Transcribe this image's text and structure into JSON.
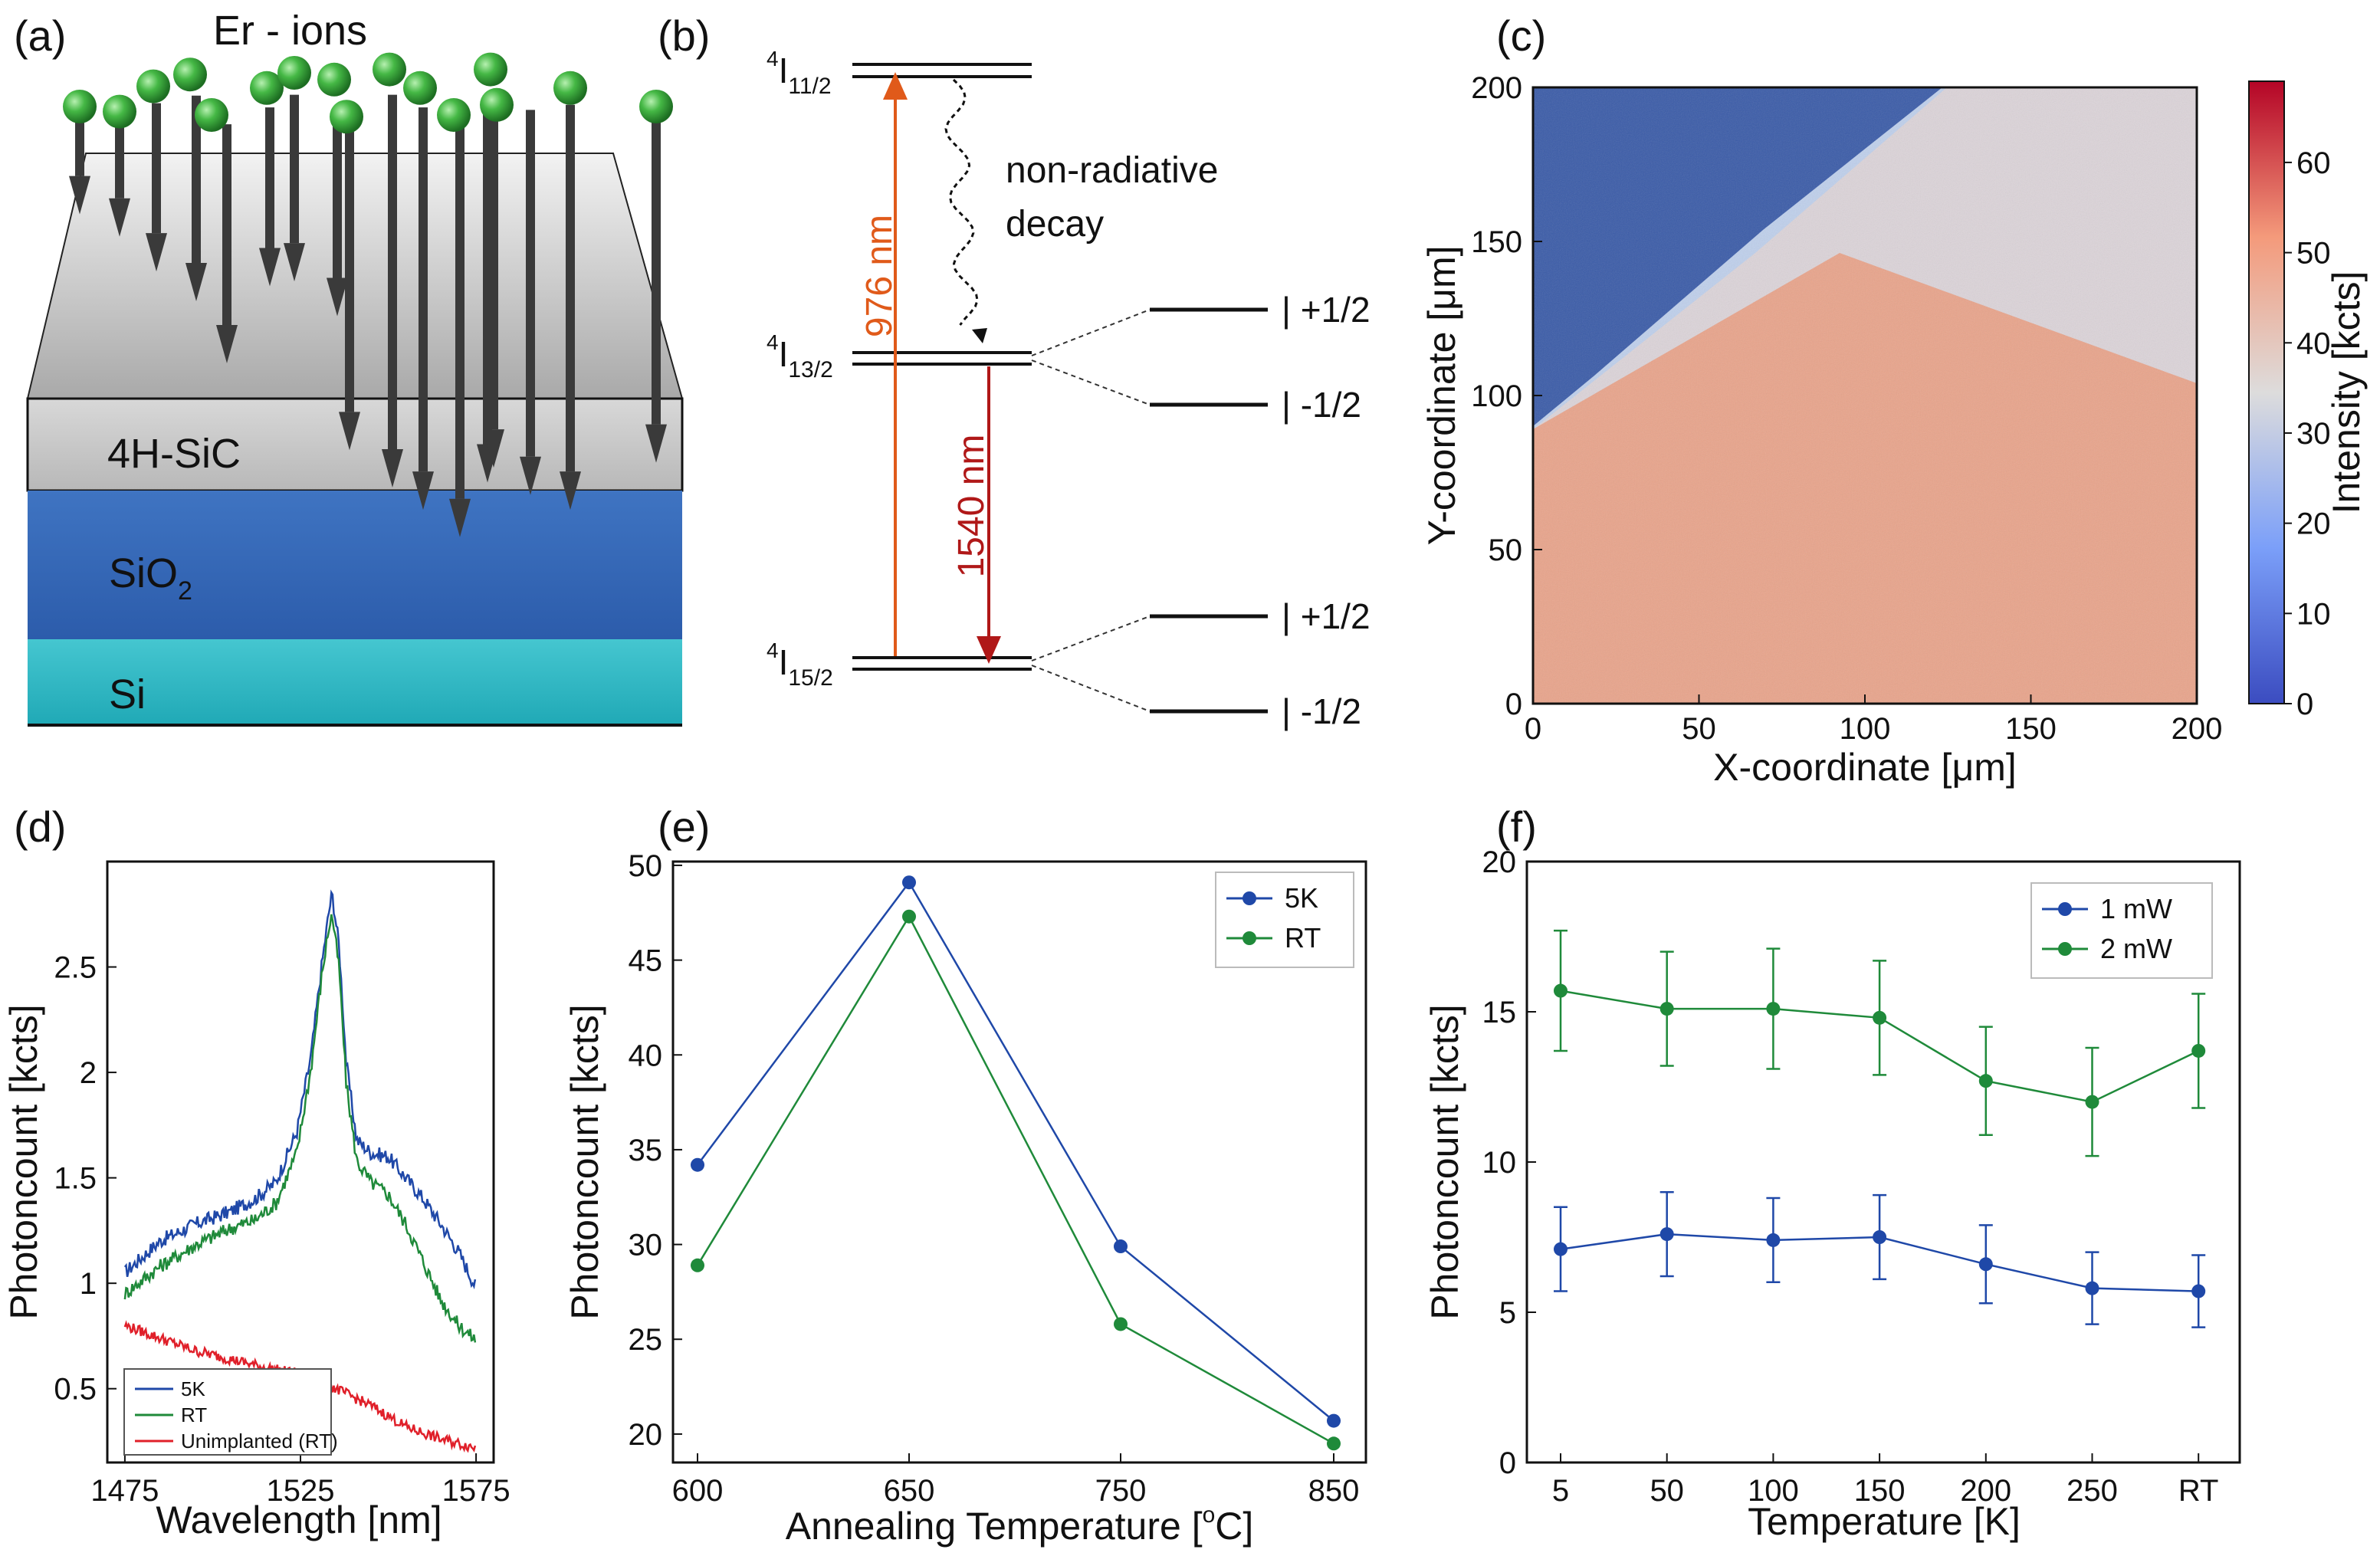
{
  "colors": {
    "erbium": "#3fae3f",
    "arrow": "#3a3a3a",
    "sic": "#c9c9c9",
    "sio2": "#3568b8",
    "si": "#2ab3c0",
    "orange": "#e05a1a",
    "darkred": "#b01818",
    "blue": "#1f48a8",
    "green": "#1f8a3a",
    "red": "#e0202a"
  },
  "panel_a": {
    "label": "(a)",
    "title": "Er - ions",
    "layers": [
      "4H-SiC",
      "SiO",
      "Si"
    ],
    "sio2_subscript": "2"
  },
  "panel_b": {
    "label": "(b)",
    "levels": [
      {
        "sup": "4",
        "name": "I",
        "sub": "11/2"
      },
      {
        "sup": "4",
        "name": "I",
        "sub": "13/2"
      },
      {
        "sup": "4",
        "name": "I",
        "sub": "15/2"
      }
    ],
    "pump_label": "976 nm",
    "emission_label": "1540 nm",
    "decay_label_1": "non-radiative",
    "decay_label_2": "decay",
    "sublevels": [
      "| +1/2",
      "| -1/2",
      "| +1/2",
      "| -1/2"
    ]
  },
  "panel_c": {
    "label": "(c)",
    "xlabel": "X-coordinate [μm]",
    "ylabel": "Y-coordinate [μm]",
    "cbar_label": "Intensity [kcts]",
    "xticks": [
      "0",
      "50",
      "100",
      "150",
      "200"
    ],
    "yticks": [
      "0",
      "50",
      "100",
      "150",
      "200"
    ],
    "cticks": [
      "0",
      "10",
      "20",
      "30",
      "40",
      "50",
      "60"
    ]
  },
  "chart_data": [
    {
      "panel": "d",
      "type": "line",
      "label": "(d)",
      "xlabel": "Wavelength [nm]",
      "ylabel": "Photoncount [kcts]",
      "xlim": [
        1470,
        1580
      ],
      "ylim": [
        0.15,
        3.0
      ],
      "xticks": [
        "1475",
        "1525",
        "1575"
      ],
      "yticks": [
        "0.5",
        "1",
        "1.5",
        "2",
        "2.5"
      ],
      "legend_position": "bottom-left",
      "series": [
        {
          "name": "5K",
          "x": [
            1475,
            1485,
            1495,
            1505,
            1512,
            1518,
            1524,
            1528,
            1531,
            1533,
            1534,
            1536,
            1538,
            1541,
            1545,
            1550,
            1555,
            1560,
            1565,
            1570,
            1575
          ],
          "y": [
            1.05,
            1.2,
            1.28,
            1.34,
            1.4,
            1.48,
            1.72,
            2.08,
            2.5,
            2.75,
            2.85,
            2.6,
            2.05,
            1.68,
            1.62,
            1.6,
            1.5,
            1.4,
            1.28,
            1.15,
            0.98
          ]
        },
        {
          "name": "RT",
          "x": [
            1475,
            1485,
            1495,
            1505,
            1512,
            1518,
            1524,
            1528,
            1531,
            1533,
            1534,
            1536,
            1538,
            1541,
            1545,
            1550,
            1555,
            1560,
            1565,
            1570,
            1575
          ],
          "y": [
            0.95,
            1.08,
            1.18,
            1.26,
            1.3,
            1.38,
            1.62,
            2.02,
            2.45,
            2.68,
            2.75,
            2.5,
            1.95,
            1.58,
            1.48,
            1.42,
            1.28,
            1.1,
            0.92,
            0.8,
            0.73
          ]
        },
        {
          "name": "Unimplanted (RT)",
          "x": [
            1475,
            1485,
            1495,
            1505,
            1515,
            1525,
            1535,
            1545,
            1555,
            1565,
            1575
          ],
          "y": [
            0.8,
            0.74,
            0.68,
            0.64,
            0.6,
            0.57,
            0.5,
            0.42,
            0.32,
            0.26,
            0.22
          ]
        }
      ]
    },
    {
      "panel": "e",
      "type": "line",
      "label": "(e)",
      "xlabel": "Annealing Temperature [",
      "xlabel_unit": "o",
      "xlabel_end": "C]",
      "ylabel": "Photoncount [kcts]",
      "categories": [
        "600",
        "650",
        "750",
        "850"
      ],
      "ylim": [
        18.5,
        50.2
      ],
      "yticks": [
        "20",
        "25",
        "30",
        "35",
        "40",
        "45",
        "50"
      ],
      "legend_position": "top-right",
      "series": [
        {
          "name": "5K",
          "values": [
            34.2,
            49.1,
            29.9,
            20.7
          ]
        },
        {
          "name": "RT",
          "values": [
            28.9,
            47.3,
            25.8,
            19.5
          ]
        }
      ]
    },
    {
      "panel": "f",
      "type": "line",
      "label": "(f)",
      "xlabel": "Temperature [K]",
      "ylabel": "Photoncount [kcts]",
      "categories": [
        "5",
        "50",
        "100",
        "150",
        "200",
        "250",
        "RT"
      ],
      "ylim": [
        0,
        20
      ],
      "yticks": [
        "0",
        "5",
        "10",
        "15",
        "20"
      ],
      "legend_position": "top-right",
      "series": [
        {
          "name": "1 mW",
          "values": [
            7.1,
            7.6,
            7.4,
            7.5,
            6.6,
            5.8,
            5.7
          ],
          "errors": [
            1.4,
            1.4,
            1.4,
            1.4,
            1.3,
            1.2,
            1.2
          ]
        },
        {
          "name": "2 mW",
          "values": [
            15.7,
            15.1,
            15.1,
            14.8,
            12.7,
            12.0,
            13.7
          ],
          "errors": [
            2.0,
            1.9,
            2.0,
            1.9,
            1.8,
            1.8,
            1.9
          ]
        }
      ]
    }
  ]
}
